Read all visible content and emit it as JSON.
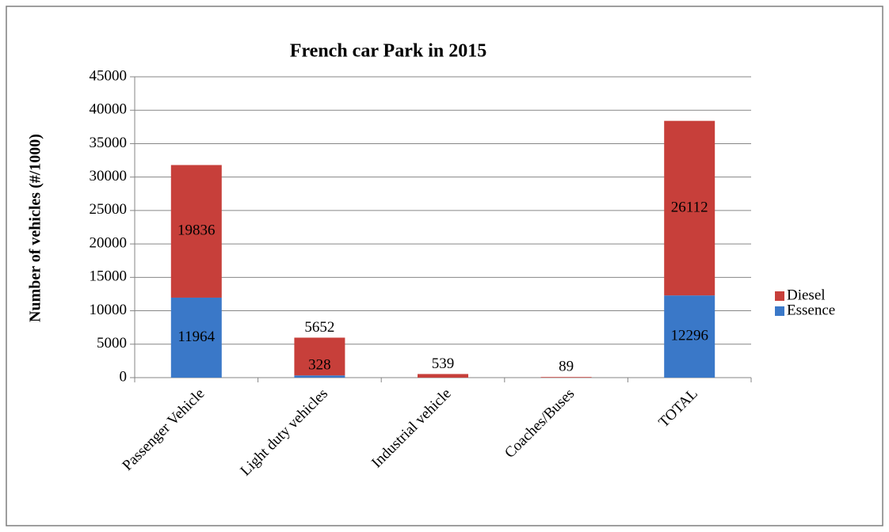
{
  "chart_data": {
    "type": "stacked_bar",
    "title": "French car Park in 2015",
    "ylabel": "Number of vehicles (#/1000)",
    "categories": [
      "Passenger Vehicle",
      "Light duty vehicles",
      "Industrial vehicle",
      "Coaches/Buses",
      "TOTAL"
    ],
    "series": [
      {
        "name": "Essence",
        "color": "#3a78c8",
        "values": [
          11964,
          328,
          null,
          null,
          12296
        ]
      },
      {
        "name": "Diesel",
        "color": "#c73f3a",
        "values": [
          19836,
          5652,
          539,
          89,
          26112
        ]
      }
    ],
    "ylim": [
      0,
      45000
    ],
    "yticks": [
      0,
      5000,
      10000,
      15000,
      20000,
      25000,
      30000,
      35000,
      40000,
      45000
    ],
    "grid": true,
    "legend": "right"
  }
}
